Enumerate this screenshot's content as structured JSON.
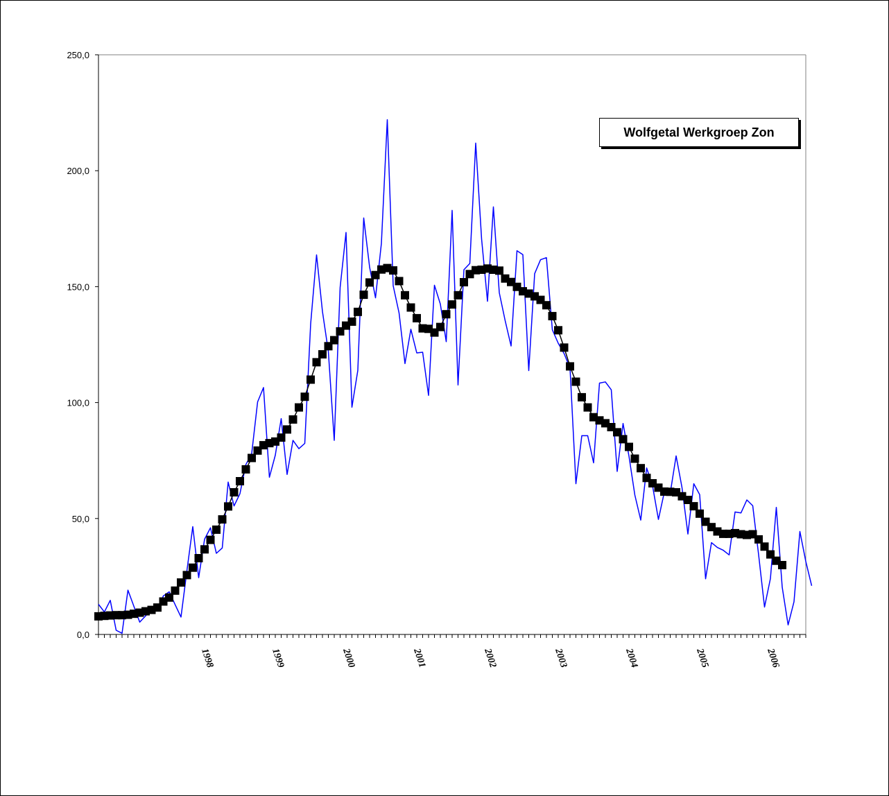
{
  "chart_data": {
    "type": "line",
    "title": "Wolfgetal Werkgroep Zon",
    "xlabel": "",
    "ylabel": "",
    "ylim": [
      0,
      250
    ],
    "yticks": [
      "0,0",
      "50,0",
      "100,0",
      "150,0",
      "200,0",
      "250,0"
    ],
    "xlim": [
      1997.0,
      2007.0
    ],
    "x_tick_labels": [
      "1998",
      "1999",
      "2000",
      "2001",
      "2002",
      "2003",
      "2004",
      "2005",
      "2006"
    ],
    "grid": false,
    "series": [
      {
        "name": "",
        "style": "line",
        "color": "#0000ff",
        "x_start": 1997.0,
        "x_step_months": 1,
        "values": [
          13.0,
          9.7,
          14.7,
          1.8,
          0.5,
          19.1,
          12.2,
          5.3,
          8.0,
          10.9,
          11.0,
          16.6,
          18.4,
          12.9,
          7.5,
          27.4,
          46.5,
          24.5,
          41.1,
          46.0,
          35.0,
          37.3,
          65.7,
          55.4,
          60.7,
          73.2,
          78.1,
          100.3,
          106.5,
          67.8,
          77.3,
          93.1,
          69.0,
          83.7,
          80.1,
          82.4,
          134.0,
          163.7,
          139.3,
          122.0,
          83.7,
          149.7,
          173.4,
          98.0,
          113.9,
          179.6,
          158.4,
          145.2,
          168.7,
          222.0,
          150.4,
          138.6,
          116.8,
          131.6,
          121.4,
          121.7,
          103.1,
          150.6,
          142.5,
          126.3,
          182.9,
          107.6,
          157.3,
          160.0,
          211.9,
          170.5,
          143.7,
          184.4,
          147.4,
          135.3,
          124.4,
          165.5,
          163.8,
          113.8,
          155.6,
          161.6,
          162.5,
          131.4,
          125.6,
          121.1,
          114.9,
          65.0,
          85.7,
          85.7,
          74.0,
          108.4,
          108.9,
          105.5,
          70.3,
          91.0,
          76.9,
          60.1,
          49.3,
          71.8,
          64.1,
          49.6,
          61.4,
          60.9,
          77.0,
          63.3,
          43.3,
          65.0,
          60.3,
          24.0,
          39.6,
          37.5,
          36.3,
          34.3,
          52.8,
          52.4,
          58.0,
          55.5,
          34.3,
          11.8,
          24.1,
          54.8,
          20.4,
          4.1,
          14.1,
          44.4,
          31.5,
          21.0
        ],
        "line_width": 1.5
      },
      {
        "name": "",
        "style": "line-markers",
        "color": "#000000",
        "marker": "square",
        "x_start": 1997.0,
        "x_step_months": 1,
        "values": [
          7.8,
          8.0,
          8.2,
          8.3,
          8.3,
          8.5,
          8.9,
          9.4,
          10.0,
          10.6,
          11.6,
          14.2,
          15.9,
          18.9,
          22.4,
          25.6,
          28.8,
          32.9,
          36.7,
          40.8,
          45.2,
          49.6,
          55.2,
          61.3,
          66.1,
          71.2,
          76.1,
          79.3,
          81.6,
          82.5,
          83.2,
          84.9,
          88.4,
          92.7,
          97.9,
          102.5,
          109.9,
          117.4,
          120.8,
          124.3,
          126.9,
          130.7,
          133.2,
          134.9,
          139.1,
          146.5,
          151.8,
          155.0,
          157.4,
          158.0,
          157.0,
          152.4,
          146.3,
          141.0,
          136.4,
          132.0,
          131.8,
          130.2,
          132.6,
          138.1,
          142.3,
          146.3,
          151.9,
          155.4,
          157.1,
          157.3,
          157.8,
          157.3,
          156.9,
          153.5,
          152.0,
          149.9,
          148.0,
          147.0,
          145.8,
          144.3,
          142.0,
          137.3,
          131.2,
          123.7,
          115.6,
          109.0,
          102.3,
          97.9,
          93.7,
          92.3,
          91.1,
          89.4,
          87.2,
          84.2,
          80.9,
          75.8,
          71.7,
          67.5,
          65.2,
          63.3,
          61.6,
          61.5,
          61.3,
          59.6,
          58.0,
          55.3,
          52.1,
          48.6,
          46.3,
          44.4,
          43.4,
          43.4,
          43.7,
          43.2,
          42.9,
          43.2,
          41.0,
          37.9,
          34.5,
          31.8,
          29.9
        ]
      }
    ]
  }
}
